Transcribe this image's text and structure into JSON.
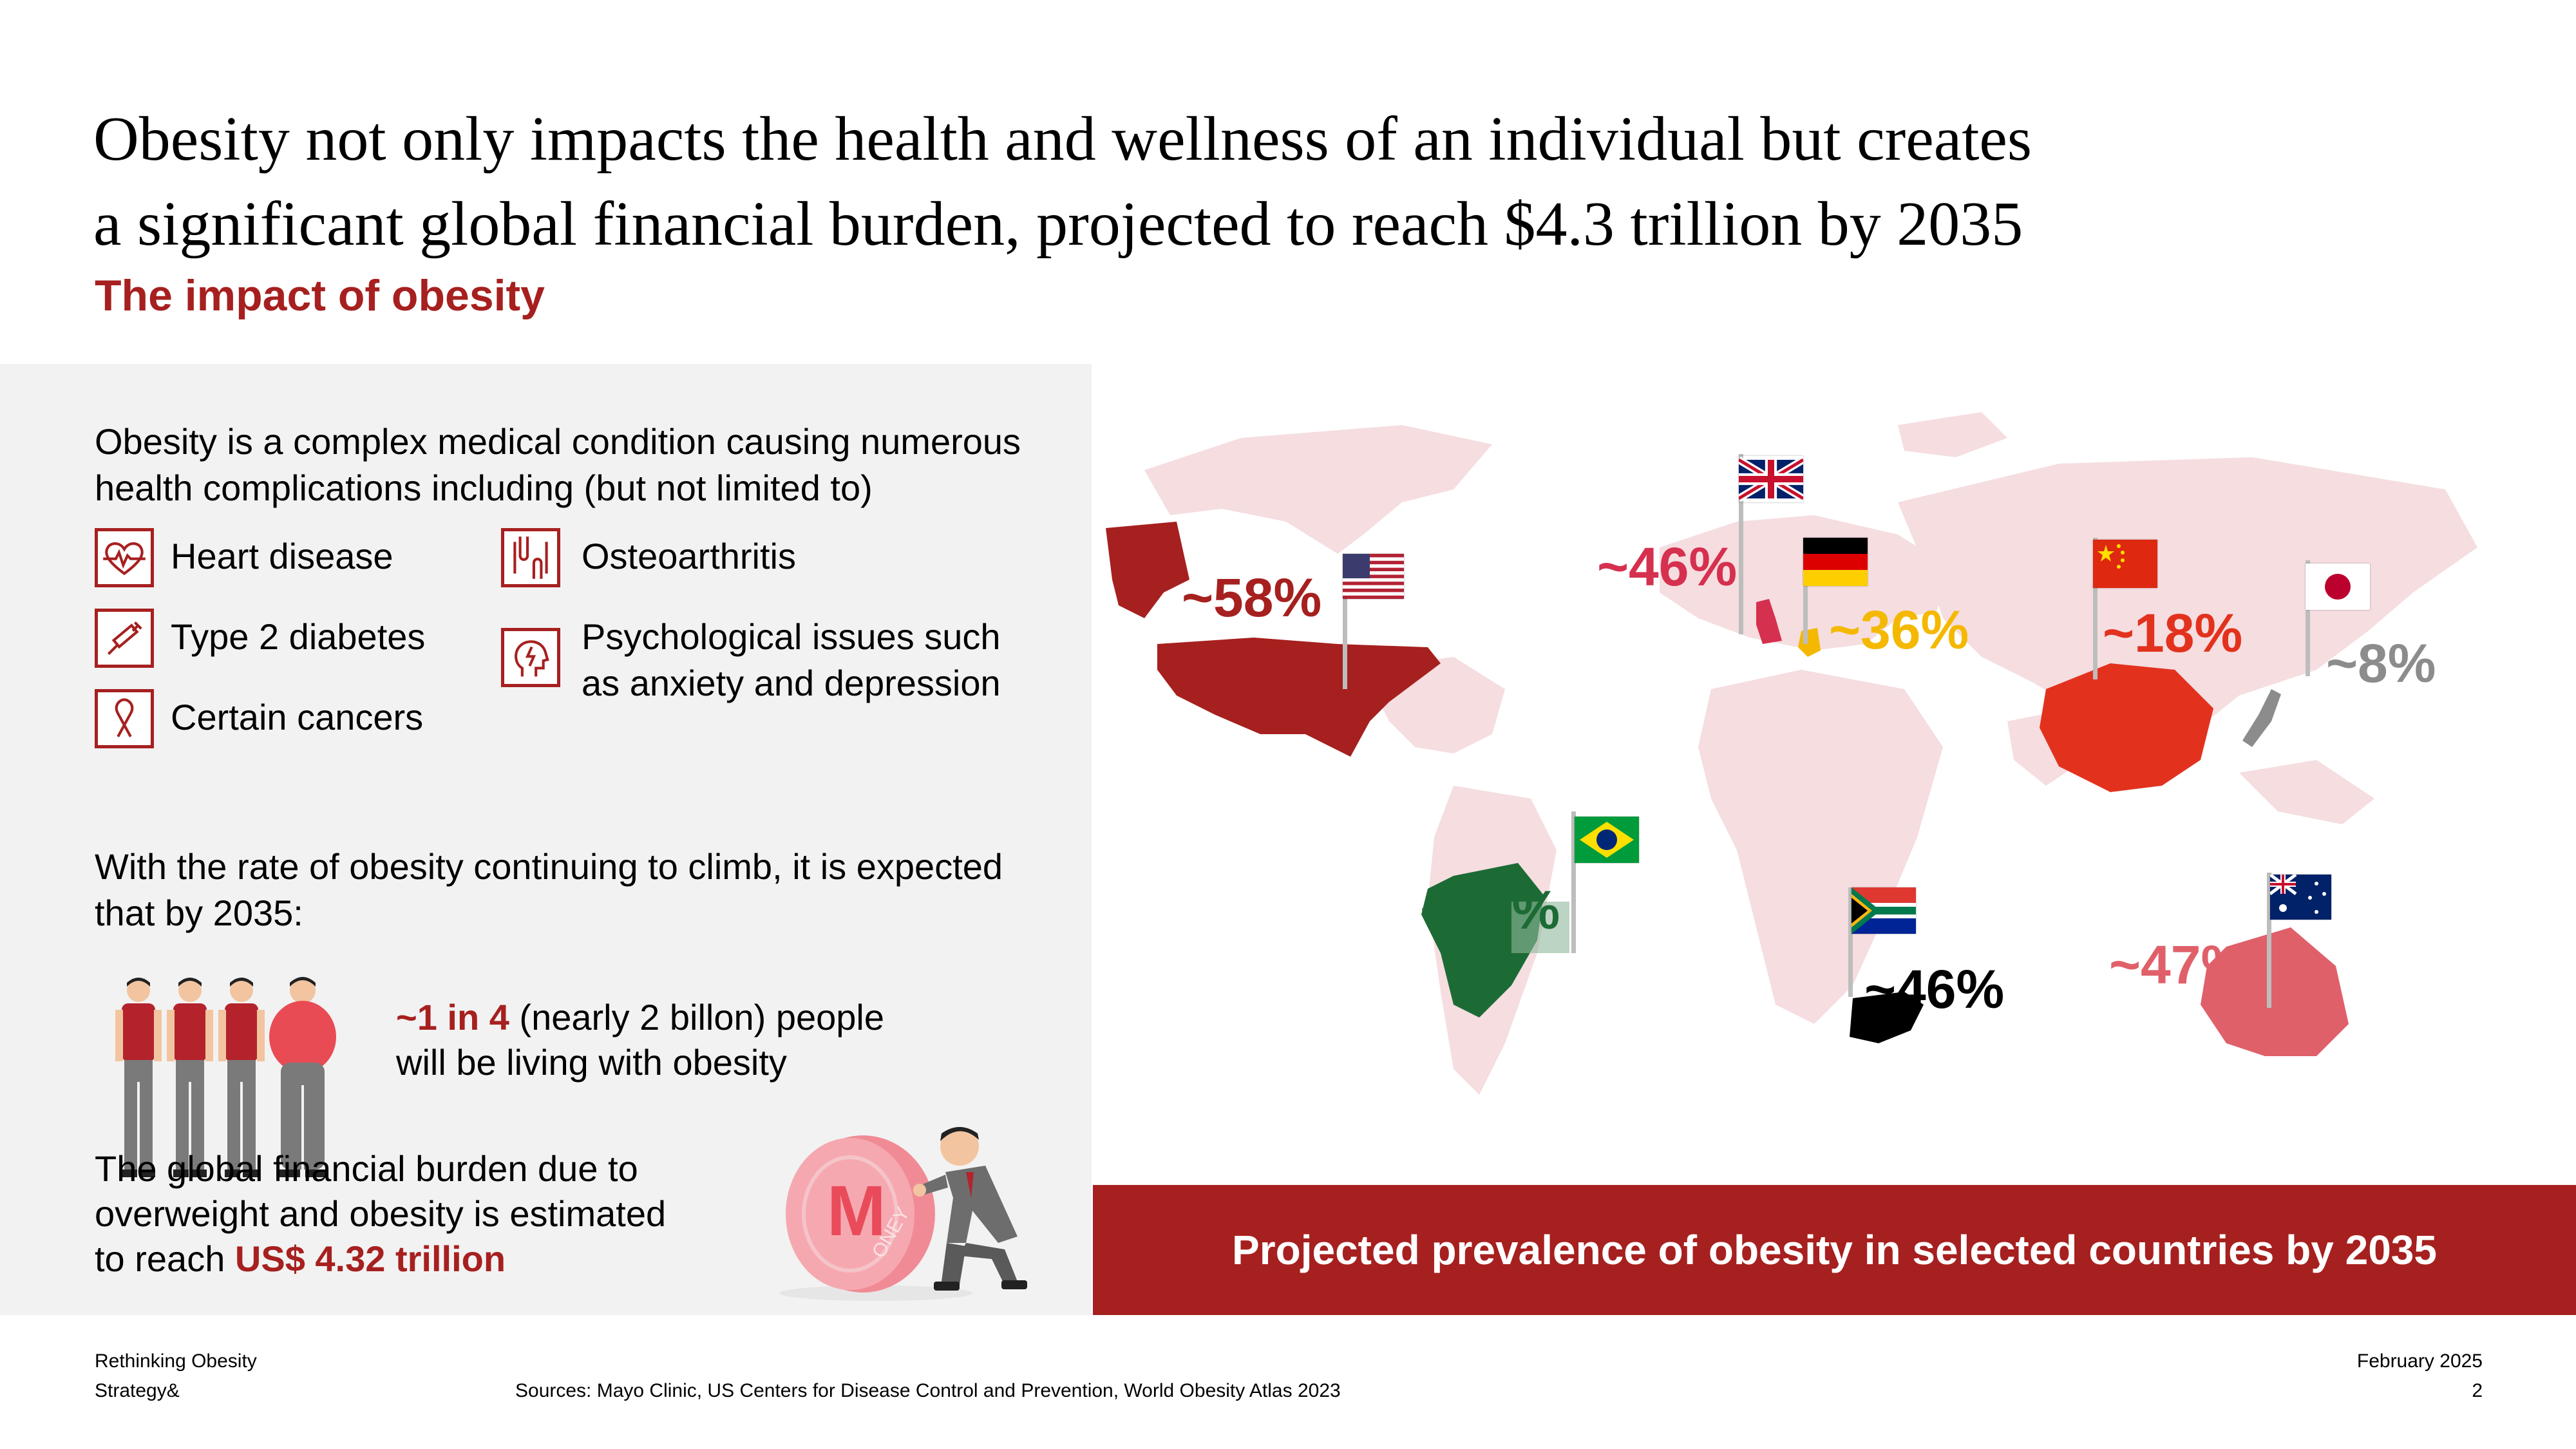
{
  "header": {
    "title_line1": "Obesity not only impacts the health and wellness of an individual but creates",
    "title_line2": "a significant global financial burden, projected to reach $4.3 trillion by 2035",
    "subtitle": "The impact of obesity"
  },
  "left": {
    "intro_line1": "Obesity is a complex medical condition causing numerous",
    "intro_line2": "health complications including (but not limited to)",
    "conditions": {
      "heart": "Heart disease",
      "diabetes": "Type 2 diabetes",
      "cancers": "Certain cancers",
      "osteo": "Osteoarthritis",
      "psych_line1": "Psychological issues such",
      "psych_line2": "as anxiety and depression"
    },
    "climb_line1": "With the rate of obesity continuing to climb, it is expected",
    "climb_line2": "that by 2035:",
    "stat1_highlight": "~1 in 4",
    "stat1_rest": " (nearly 2 billon) people",
    "stat1_line2": "will be living with obesity",
    "stat2_line1": "The global financial burden due to",
    "stat2_line2": "overweight and obesity is estimated",
    "stat2_line3_prefix": "to reach ",
    "stat2_highlight": "US$ 4.32 trillion",
    "coin_text": "ONEY"
  },
  "map": {
    "banner": "Projected prevalence of obesity in selected countries by 2035",
    "countries": {
      "usa": {
        "label": "~58%",
        "color": "#a6201f"
      },
      "uk": {
        "label": "~46%",
        "color": "#d6304f"
      },
      "germany": {
        "label": "~36%",
        "color": "#f5b800"
      },
      "china": {
        "label": "~18%",
        "color": "#e2321e"
      },
      "japan": {
        "label": "~8%",
        "color": "#8c8c8c"
      },
      "brazil": {
        "label": "~41%",
        "color": "#1c6b35"
      },
      "south_africa": {
        "label": "~46%",
        "color": "#000000"
      },
      "australia": {
        "label": "~47%",
        "color": "#e0606a"
      }
    }
  },
  "footer": {
    "left_line1": "Rethinking Obesity",
    "left_line2": "Strategy&",
    "sources": "Sources: Mayo Clinic, US Centers for Disease Control and Prevention, World Obesity Atlas 2023",
    "date": "February 2025",
    "page": "2"
  }
}
